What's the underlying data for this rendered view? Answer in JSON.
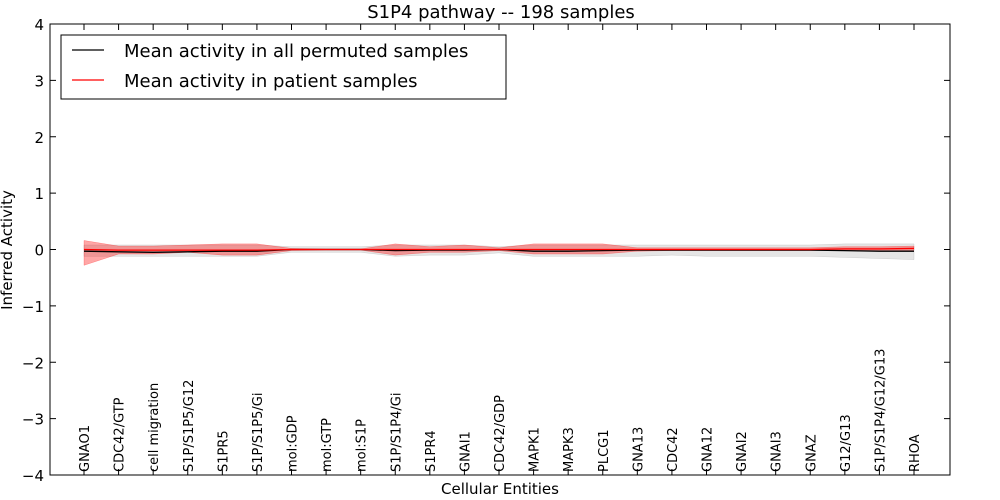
{
  "chart_data": {
    "type": "line",
    "title": "S1P4 pathway -- 198 samples",
    "xlabel": "Cellular Entities",
    "ylabel": "Inferred Activity",
    "ylim": [
      -4,
      4
    ],
    "yticks": [
      -4,
      -3,
      -2,
      -1,
      0,
      1,
      2,
      3,
      4
    ],
    "ytick_labels": [
      "−4",
      "−3",
      "−2",
      "−1",
      "0",
      "1",
      "2",
      "3",
      "4"
    ],
    "grid": false,
    "legend_position": "top-left",
    "categories": [
      "GNAO1",
      "CDC42/GTP",
      "cell migration",
      "S1P/S1P5/G12",
      "S1PR5",
      "S1P/S1P5/Gi",
      "mol:GDP",
      "mol:GTP",
      "mol:S1P",
      "S1P/S1P4/Gi",
      "S1PR4",
      "GNAI1",
      "CDC42/GDP",
      "MAPK1",
      "MAPK3",
      "PLCG1",
      "GNA13",
      "CDC42",
      "GNA12",
      "GNAI2",
      "GNAI3",
      "GNAZ",
      "G12/G13",
      "S1P/S1P4/G12/G13",
      "RHOA"
    ],
    "series": [
      {
        "name": "Mean activity in all permuted samples",
        "color": "#000000",
        "values": [
          -0.03,
          -0.04,
          -0.05,
          -0.04,
          -0.03,
          -0.03,
          0.0,
          0.0,
          0.0,
          -0.02,
          -0.01,
          -0.01,
          0.0,
          -0.03,
          -0.03,
          -0.02,
          -0.01,
          -0.01,
          -0.01,
          -0.01,
          -0.01,
          -0.01,
          -0.02,
          -0.03,
          -0.03
        ],
        "band_low": [
          -0.12,
          -0.12,
          -0.12,
          -0.12,
          -0.12,
          -0.12,
          -0.05,
          -0.05,
          -0.05,
          -0.12,
          -0.1,
          -0.1,
          -0.06,
          -0.12,
          -0.12,
          -0.12,
          -0.12,
          -0.1,
          -0.12,
          -0.12,
          -0.12,
          -0.12,
          -0.14,
          -0.16,
          -0.18
        ],
        "band_high": [
          0.08,
          0.08,
          0.08,
          0.08,
          0.08,
          0.08,
          0.05,
          0.05,
          0.05,
          0.08,
          0.08,
          0.08,
          0.05,
          0.08,
          0.08,
          0.08,
          0.08,
          0.08,
          0.08,
          0.08,
          0.08,
          0.08,
          0.1,
          0.1,
          0.1
        ],
        "band_color": "#999999"
      },
      {
        "name": "Mean activity in patient samples",
        "color": "#ff0000",
        "values": [
          0.0,
          -0.01,
          -0.01,
          -0.01,
          -0.01,
          -0.01,
          0.0,
          0.0,
          0.0,
          0.0,
          0.0,
          0.0,
          0.0,
          0.0,
          0.0,
          0.0,
          0.0,
          0.0,
          0.0,
          0.0,
          0.0,
          0.0,
          0.01,
          0.01,
          0.02
        ],
        "band_low": [
          -0.28,
          -0.08,
          -0.08,
          -0.05,
          -0.1,
          -0.1,
          -0.02,
          -0.01,
          -0.01,
          -0.1,
          -0.05,
          -0.05,
          -0.02,
          -0.08,
          -0.08,
          -0.08,
          -0.03,
          -0.02,
          -0.02,
          -0.02,
          -0.02,
          -0.02,
          -0.01,
          -0.01,
          -0.01
        ],
        "band_high": [
          0.16,
          0.06,
          0.06,
          0.08,
          0.1,
          0.1,
          0.02,
          0.01,
          0.01,
          0.1,
          0.05,
          0.08,
          0.03,
          0.1,
          0.1,
          0.1,
          0.03,
          0.03,
          0.03,
          0.03,
          0.03,
          0.03,
          0.05,
          0.05,
          0.06
        ],
        "band_color": "#ff0000"
      }
    ]
  }
}
